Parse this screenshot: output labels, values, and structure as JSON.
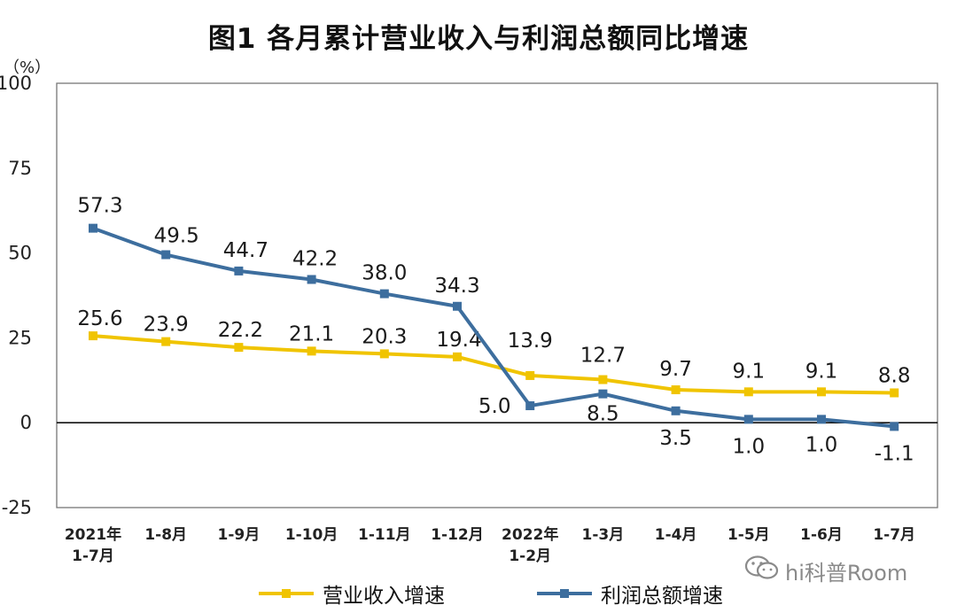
{
  "title": "图1 各月累计营业收入与利润总额同比增速",
  "unit_label": "（%）",
  "watermark": "hi科普Room",
  "chart_data": {
    "type": "line",
    "title": "图1 各月累计营业收入与利润总额同比增速",
    "ylabel": "（%）",
    "ylim": [
      -25,
      100
    ],
    "yticks": [
      -25,
      0,
      25,
      50,
      75,
      100
    ],
    "categories": [
      [
        "2021年",
        "1-7月"
      ],
      [
        "1-8月"
      ],
      [
        "1-9月"
      ],
      [
        "1-10月"
      ],
      [
        "1-11月"
      ],
      [
        "1-12月"
      ],
      [
        "2022年",
        "1-2月"
      ],
      [
        "1-3月"
      ],
      [
        "1-4月"
      ],
      [
        "1-5月"
      ],
      [
        "1-6月"
      ],
      [
        "1-7月"
      ]
    ],
    "series": [
      {
        "name": "营业收入增速",
        "color": "#f0c400",
        "values": [
          25.6,
          23.9,
          22.2,
          21.1,
          20.3,
          19.4,
          13.9,
          12.7,
          9.7,
          9.1,
          9.1,
          8.8
        ],
        "labels": [
          "25.6",
          "23.9",
          "22.2",
          "21.1",
          "20.3",
          "19.4",
          "13.9",
          "12.7",
          "9.7",
          "9.1",
          "9.1",
          "8.8"
        ]
      },
      {
        "name": "利润总额增速",
        "color": "#3d6e9e",
        "values": [
          57.3,
          49.5,
          44.7,
          42.2,
          38.0,
          34.3,
          5.0,
          8.5,
          3.5,
          1.0,
          1.0,
          -1.1
        ],
        "labels": [
          "57.3",
          "49.5",
          "44.7",
          "42.2",
          "38.0",
          "34.3",
          "5.0",
          "8.5",
          "3.5",
          "1.0",
          "1.0",
          "-1.1"
        ]
      }
    ],
    "grid": false,
    "legend_position": "bottom"
  }
}
